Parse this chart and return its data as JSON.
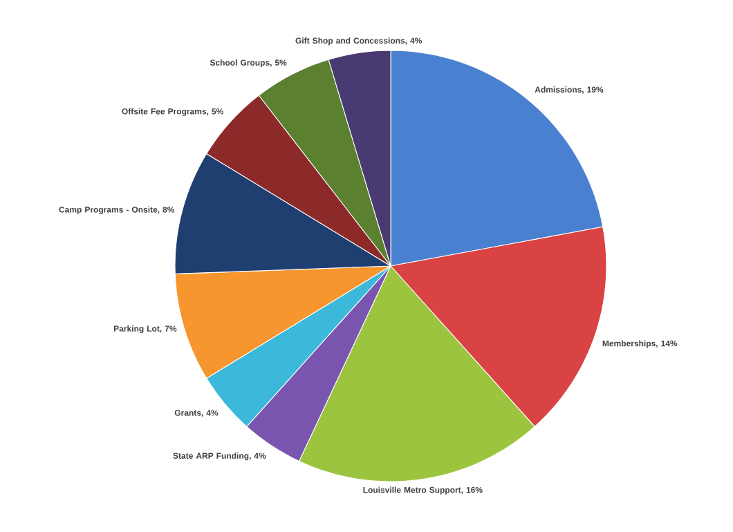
{
  "chart_data": {
    "type": "pie",
    "categories": [
      "Admissions",
      "Memberships",
      "Louisville Metro Support",
      "State ARP Funding",
      "Grants",
      "Parking Lot",
      "Camp Programs - Onsite",
      "Offsite Fee Programs",
      "School Groups",
      "Gift Shop and Concessions"
    ],
    "values": [
      19,
      14,
      16,
      4,
      4,
      7,
      8,
      5,
      5,
      4
    ],
    "value_labels": [
      ", 19%",
      ", 14%",
      ", 16%",
      ", 4%",
      ", 4%",
      ", 7%",
      ", 8%",
      ", 5%",
      ", 5%",
      ", 4%"
    ],
    "colors": [
      "#4a80d0",
      "#d94343",
      "#9cc43e",
      "#7a55b0",
      "#3cb9da",
      "#f7962f",
      "#1f3f70",
      "#8c2a2a",
      "#5a8030",
      "#4a3a72"
    ]
  }
}
